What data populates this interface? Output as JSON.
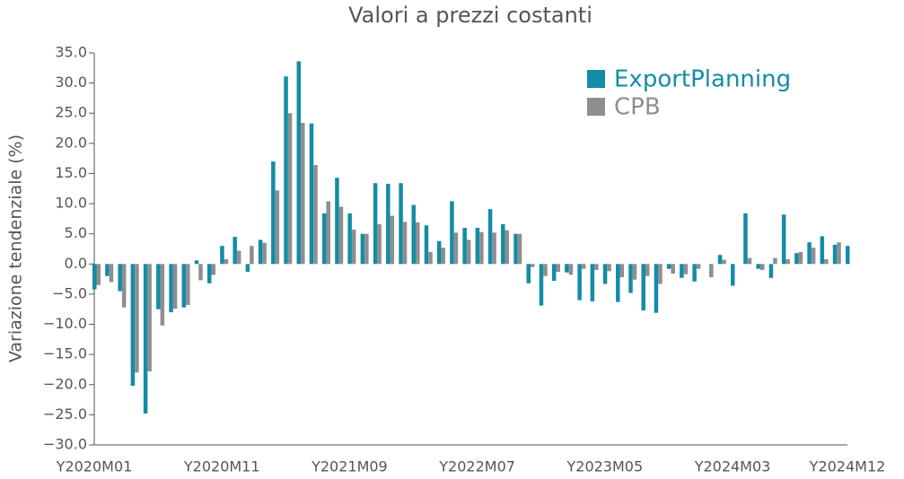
{
  "chart_data": {
    "type": "bar",
    "title": "Valori a prezzi costanti",
    "y_label": "Variazione tendenziale (%)",
    "categories": [
      "Y2020M01",
      null,
      null,
      null,
      null,
      null,
      null,
      null,
      null,
      null,
      "Y2020M11",
      null,
      null,
      null,
      null,
      null,
      null,
      null,
      null,
      null,
      "Y2021M09",
      null,
      null,
      null,
      null,
      null,
      null,
      null,
      null,
      null,
      "Y2022M07",
      null,
      null,
      null,
      null,
      null,
      null,
      null,
      null,
      null,
      "Y2023M05",
      null,
      null,
      null,
      null,
      null,
      null,
      null,
      null,
      null,
      "Y2024M03",
      null,
      null,
      null,
      null,
      null,
      null,
      null,
      null,
      "Y2024M12"
    ],
    "series": [
      {
        "name": "ExportPlanning",
        "color": "#138ca5",
        "values": [
          -4.2,
          -2,
          -4.5,
          -20.2,
          -24.8,
          -7.5,
          -8,
          -7.2,
          0.6,
          -3.2,
          3.0,
          4.5,
          -1.3,
          4.0,
          17.0,
          31.1,
          33.6,
          23.3,
          8.4,
          14.3,
          8.4,
          5.0,
          13.4,
          13.3,
          13.4,
          9.8,
          6.4,
          3.8,
          10.4,
          6.0,
          6.0,
          9.1,
          6.6,
          5.0,
          -3.2,
          -6.9,
          -2.8,
          -1.4,
          -6.0,
          -6.2,
          -3.3,
          -6.3,
          -4.8,
          -7.7,
          -8.1,
          -0.8,
          -2.3,
          -2.9,
          0,
          1.5,
          -3.6,
          8.4,
          -0.8,
          -2.3,
          8.2,
          1.8,
          3.6,
          4.6,
          3.2,
          3.0
        ]
      },
      {
        "name": "CPB",
        "color": "#8e8e91",
        "values": [
          -3.5,
          -3,
          -7.2,
          -18,
          -17.8,
          -10.2,
          -7.4,
          -6.8,
          -2.7,
          -1.8,
          0.8,
          2.2,
          3.0,
          3.5,
          12.2,
          25.0,
          23.4,
          16.4,
          10.4,
          9.5,
          5.7,
          5.0,
          6.6,
          8.0,
          7.0,
          6.9,
          2.0,
          2.7,
          5.2,
          4.0,
          5.3,
          5.2,
          5.6,
          5.0,
          -0.5,
          -2.0,
          -1.3,
          -1.8,
          -0.8,
          -1.0,
          -1.2,
          -2.2,
          -2.6,
          -2.0,
          -3.3,
          -1.6,
          -1.7,
          -0.8,
          -2.2,
          0.7,
          0,
          1.0,
          -1.0,
          1.0,
          0.8,
          2.0,
          2.7,
          0.8,
          3.6,
          null
        ]
      }
    ],
    "ylim": [
      -30,
      35
    ],
    "yticks": [
      {
        "value": -30,
        "label": "−30.0"
      },
      {
        "value": -25,
        "label": "−25.0"
      },
      {
        "value": -20,
        "label": "−20.0"
      },
      {
        "value": -15,
        "label": "−15.0"
      },
      {
        "value": -10,
        "label": "−10.0"
      },
      {
        "value": -5,
        "label": "−5.0"
      },
      {
        "value": 0,
        "label": "0.0"
      },
      {
        "value": 5,
        "label": "5.0"
      },
      {
        "value": 10,
        "label": "10.0"
      },
      {
        "value": 15,
        "label": "15.0"
      },
      {
        "value": 20,
        "label": "20.0"
      },
      {
        "value": 25,
        "label": "25.0"
      },
      {
        "value": 30,
        "label": "30.0"
      },
      {
        "value": 35,
        "label": "35.0"
      }
    ],
    "legend": "upper right"
  }
}
